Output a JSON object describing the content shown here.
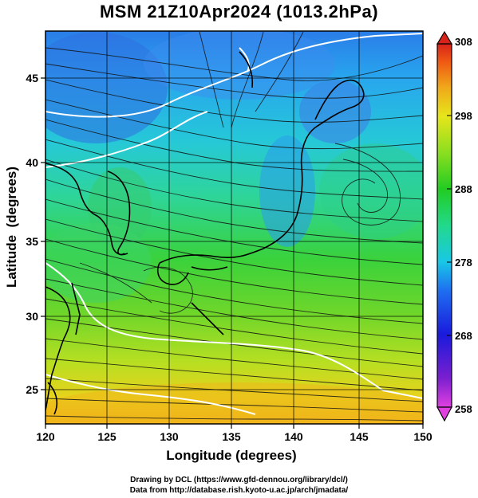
{
  "title": "MSM 21Z10Apr2024 (1013.2hPa)",
  "xlabel": "Longitude (degrees)",
  "ylabel": "Latitude  (degrees)",
  "credits": {
    "line1": "Drawing by DCL (https://www.gfd-dennou.org/library/dcl/)",
    "line2": "Data from http://database.rish.kyoto-u.ac.jp/arch/jmadata/"
  },
  "map": {
    "lon_range": [
      120,
      150
    ],
    "lat_range": [
      22.5,
      47.8
    ],
    "lon_ticks": [
      120,
      125,
      130,
      135,
      140,
      145,
      150
    ],
    "lat_ticks": [
      25,
      30,
      35,
      40,
      45
    ],
    "grid": true,
    "fields": [
      "temperature (shaded)",
      "streamlines (black)",
      "contours (white)"
    ]
  },
  "colorbar": {
    "min": 258,
    "max": 308,
    "labels": [
      258,
      268,
      278,
      288,
      298,
      308
    ],
    "colors": [
      "#e040e0",
      "#7a1fcf",
      "#1a1adc",
      "#1e6ef0",
      "#18c8e6",
      "#22d98c",
      "#22cc22",
      "#8ade20",
      "#e6e61a",
      "#f0a81a",
      "#f05a14",
      "#d8231a"
    ]
  },
  "colors": {
    "land_border": "#000000",
    "contour": "#ffffff",
    "streamline": "#111111"
  }
}
